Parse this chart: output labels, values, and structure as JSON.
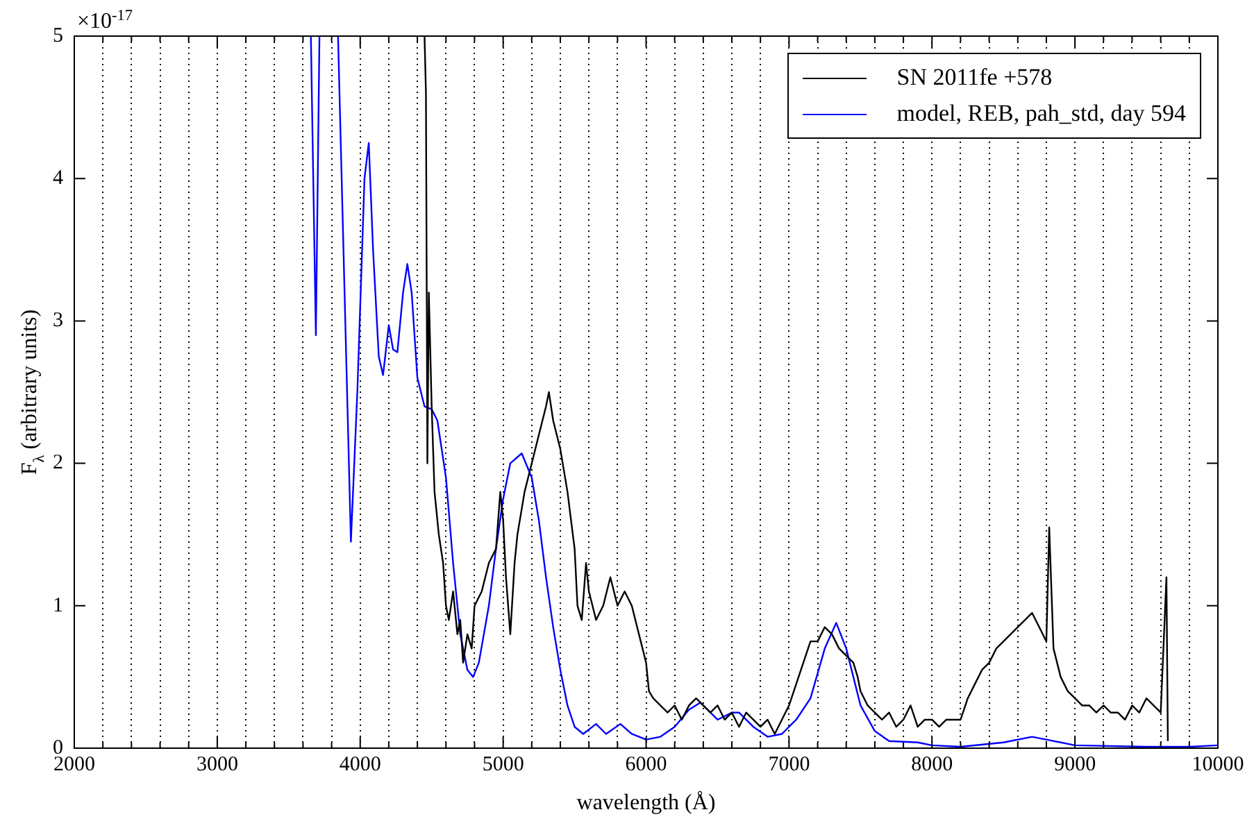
{
  "chart_data": {
    "type": "line",
    "xlabel": "wavelength (Å)",
    "ylabel": "F$_{λ}$ (arbitrary units)",
    "annotations": [
      "×10$^{-17}$"
    ],
    "xlim": [
      2000,
      10000
    ],
    "xticks": [
      2000,
      {
        "value": 2200,
        "label": null
      },
      {
        "value": 2400,
        "label": null
      },
      {
        "value": 2600,
        "label": null
      },
      {
        "value": 2800,
        "label": null
      },
      3000,
      {
        "value": 3200,
        "label": null
      },
      {
        "value": 3400,
        "label": null
      },
      {
        "value": 3600,
        "label": null
      },
      {
        "value": 3800,
        "label": null
      },
      4000,
      {
        "value": 4200,
        "label": null
      },
      {
        "value": 4400,
        "label": null
      },
      {
        "value": 4600,
        "label": null
      },
      {
        "value": 4800,
        "label": null
      },
      5000,
      {
        "value": 5200,
        "label": null
      },
      {
        "value": 5400,
        "label": null
      },
      {
        "value": 5600,
        "label": null
      },
      {
        "value": 5800,
        "label": null
      },
      6000,
      {
        "value": 6200,
        "label": null
      },
      {
        "value": 6400,
        "label": null
      },
      {
        "value": 6600,
        "label": null
      },
      {
        "value": 6800,
        "label": null
      },
      7000,
      {
        "value": 7200,
        "label": null
      },
      {
        "value": 7400,
        "label": null
      },
      {
        "value": 7600,
        "label": null
      },
      {
        "value": 7800,
        "label": null
      },
      8000,
      {
        "value": 8200,
        "label": null
      },
      {
        "value": 8400,
        "label": null
      },
      {
        "value": 8600,
        "label": null
      },
      {
        "value": 8800,
        "label": null
      },
      9000,
      {
        "value": 9200,
        "label": null
      },
      {
        "value": 9400,
        "label": null
      },
      {
        "value": 9600,
        "label": null
      },
      {
        "value": 9800,
        "label": null
      },
      10000
    ],
    "ylim": [
      0,
      5
    ],
    "yticks": [
      0,
      1,
      2,
      3,
      4,
      5
    ],
    "grid": "x",
    "legend": "top right",
    "marker": "none",
    "line_style": "solid",
    "series": [
      {
        "name": "SN 2011fe +578",
        "color": "#000000",
        "x": [
          4450,
          4460,
          4470,
          4480,
          4500,
          4520,
          4550,
          4580,
          4600,
          4620,
          4650,
          4680,
          4700,
          4720,
          4750,
          4780,
          4800,
          4850,
          4900,
          4950,
          4980,
          5000,
          5020,
          5050,
          5080,
          5100,
          5150,
          5200,
          5250,
          5300,
          5320,
          5350,
          5400,
          5450,
          5500,
          5520,
          5550,
          5580,
          5600,
          5650,
          5700,
          5750,
          5800,
          5850,
          5900,
          5950,
          6000,
          6020,
          6050,
          6100,
          6150,
          6200,
          6250,
          6300,
          6350,
          6400,
          6450,
          6500,
          6550,
          6600,
          6650,
          6700,
          6750,
          6800,
          6850,
          6900,
          6950,
          7000,
          7050,
          7100,
          7150,
          7200,
          7250,
          7300,
          7350,
          7400,
          7450,
          7480,
          7500,
          7550,
          7600,
          7650,
          7700,
          7750,
          7800,
          7850,
          7900,
          7950,
          8000,
          8050,
          8100,
          8150,
          8200,
          8250,
          8300,
          8350,
          8400,
          8450,
          8500,
          8550,
          8600,
          8650,
          8700,
          8750,
          8800,
          8820,
          8850,
          8900,
          8950,
          9000,
          9050,
          9100,
          9150,
          9200,
          9250,
          9300,
          9350,
          9400,
          9450,
          9500,
          9550,
          9600,
          9640,
          9650
        ],
        "values": [
          5.0,
          4.6,
          2.0,
          3.2,
          2.4,
          1.8,
          1.5,
          1.3,
          1.0,
          0.9,
          1.1,
          0.8,
          0.9,
          0.6,
          0.8,
          0.7,
          1.0,
          1.1,
          1.3,
          1.4,
          1.8,
          1.6,
          1.2,
          0.8,
          1.3,
          1.5,
          1.8,
          2.0,
          2.2,
          2.4,
          2.5,
          2.3,
          2.1,
          1.8,
          1.4,
          1.0,
          0.9,
          1.3,
          1.1,
          0.9,
          1.0,
          1.2,
          1.0,
          1.1,
          1.0,
          0.8,
          0.6,
          0.4,
          0.35,
          0.3,
          0.25,
          0.3,
          0.2,
          0.3,
          0.35,
          0.3,
          0.25,
          0.3,
          0.2,
          0.25,
          0.15,
          0.25,
          0.2,
          0.15,
          0.2,
          0.1,
          0.2,
          0.3,
          0.45,
          0.6,
          0.75,
          0.75,
          0.85,
          0.8,
          0.7,
          0.65,
          0.6,
          0.5,
          0.4,
          0.3,
          0.25,
          0.2,
          0.25,
          0.15,
          0.2,
          0.3,
          0.15,
          0.2,
          0.2,
          0.15,
          0.2,
          0.2,
          0.2,
          0.35,
          0.45,
          0.55,
          0.6,
          0.7,
          0.75,
          0.8,
          0.85,
          0.9,
          0.95,
          0.85,
          0.75,
          1.55,
          0.7,
          0.5,
          0.4,
          0.35,
          0.3,
          0.3,
          0.25,
          0.3,
          0.25,
          0.25,
          0.2,
          0.3,
          0.25,
          0.35,
          0.3,
          0.25,
          1.2,
          0.05
        ]
      },
      {
        "name": "model, REB, pah_std, day 594",
        "color": "#0000ff",
        "x": [
          3655,
          3690,
          3715,
          3780,
          3845,
          3935,
          3980,
          4030,
          4060,
          4090,
          4130,
          4160,
          4200,
          4230,
          4260,
          4300,
          4330,
          4360,
          4400,
          4450,
          4500,
          4540,
          4600,
          4650,
          4700,
          4750,
          4790,
          4830,
          4900,
          4950,
          5000,
          5050,
          5130,
          5200,
          5250,
          5300,
          5350,
          5400,
          5450,
          5500,
          5560,
          5650,
          5720,
          5820,
          5900,
          6000,
          6100,
          6200,
          6300,
          6380,
          6450,
          6500,
          6600,
          6650,
          6750,
          6850,
          6950,
          7050,
          7150,
          7250,
          7330,
          7400,
          7500,
          7600,
          7700,
          7900,
          8000,
          8200,
          8500,
          8700,
          8800,
          9000,
          9500,
          9800,
          10000
        ],
        "values": [
          5.0,
          2.9,
          5.0,
          null,
          5.0,
          1.45,
          2.5,
          4.0,
          4.25,
          3.5,
          2.75,
          2.62,
          2.97,
          2.8,
          2.78,
          3.2,
          3.4,
          3.2,
          2.6,
          2.4,
          2.38,
          2.3,
          1.9,
          1.3,
          0.8,
          0.55,
          0.5,
          0.6,
          1.0,
          1.4,
          1.75,
          2.0,
          2.07,
          1.9,
          1.6,
          1.2,
          0.85,
          0.55,
          0.3,
          0.15,
          0.1,
          0.17,
          0.1,
          0.17,
          0.1,
          0.06,
          0.08,
          0.15,
          0.27,
          0.32,
          0.25,
          0.2,
          0.25,
          0.25,
          0.15,
          0.08,
          0.1,
          0.2,
          0.35,
          0.7,
          0.88,
          0.7,
          0.3,
          0.12,
          0.05,
          0.04,
          0.02,
          0.01,
          0.04,
          0.08,
          0.06,
          0.02,
          0.01,
          0.01,
          0.02
        ]
      }
    ]
  }
}
